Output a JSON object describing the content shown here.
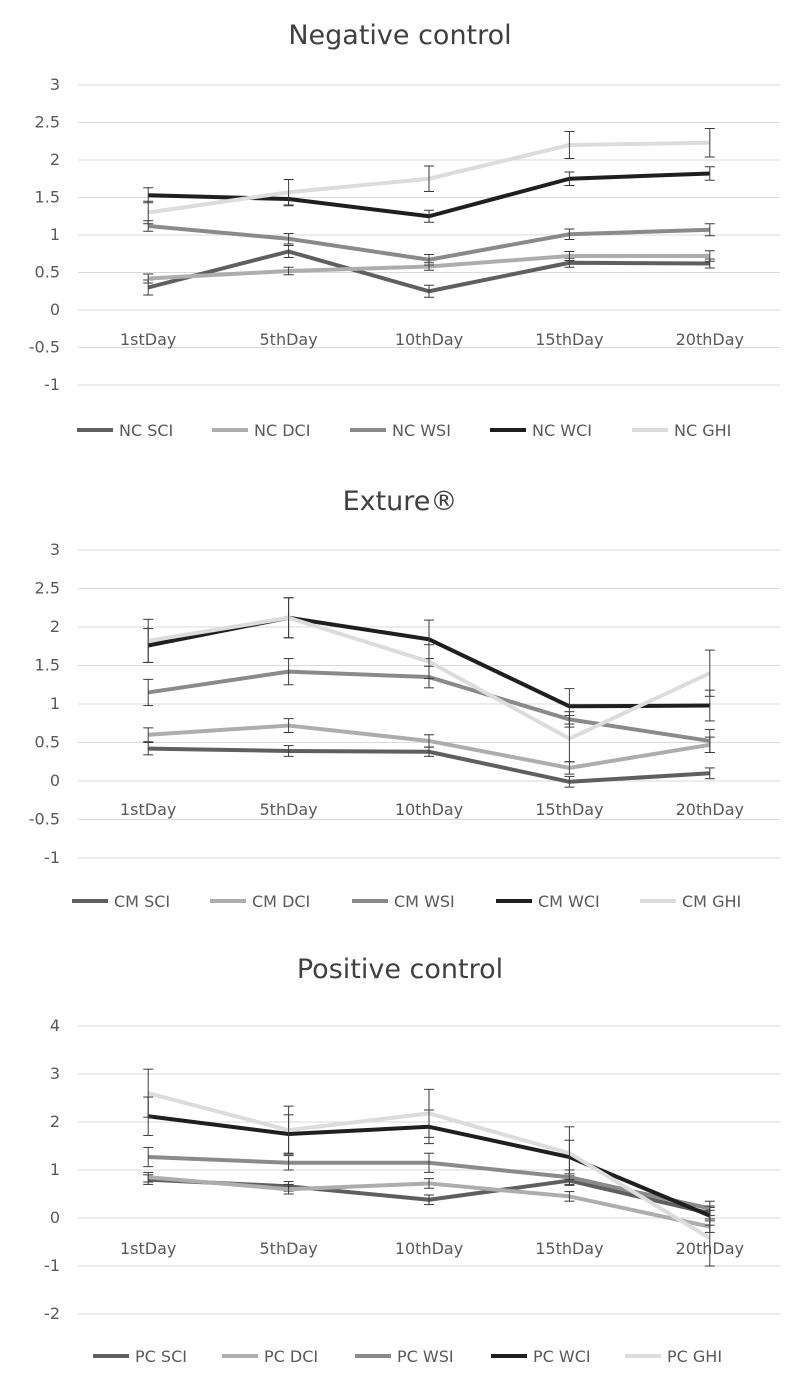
{
  "colors": {
    "SCI": "#5f5f5f",
    "DCI": "#adadad",
    "WSI": "#8a8a8a",
    "WCI": "#1f1f1f",
    "GHI": "#dcdcdc",
    "grid": "#d9d9d9",
    "errorbar": "#3a3a3a"
  },
  "chart_data": [
    {
      "type": "line",
      "title": "Negative control",
      "categories": [
        "1stDay",
        "5thDay",
        "10thDay",
        "15thDay",
        "20thDay"
      ],
      "ylim": [
        -1,
        3
      ],
      "yticks": [
        "3",
        "2.5",
        "2",
        "1.5",
        "1",
        "0.5",
        "0",
        "-0.5",
        "-1"
      ],
      "ytick_values": [
        3,
        2.5,
        2,
        1.5,
        1,
        0.5,
        0,
        -0.5,
        -1
      ],
      "grid": true,
      "legend_position": "bottom",
      "series": [
        {
          "name": "NC SCI",
          "key": "SCI",
          "values": [
            0.3,
            0.78,
            0.25,
            0.63,
            0.62
          ],
          "err": [
            0.1,
            0.08,
            0.08,
            0.06,
            0.06
          ]
        },
        {
          "name": "NC DCI",
          "key": "DCI",
          "values": [
            0.42,
            0.52,
            0.58,
            0.72,
            0.72
          ],
          "err": [
            0.06,
            0.05,
            0.05,
            0.06,
            0.07
          ]
        },
        {
          "name": "NC WSI",
          "key": "WSI",
          "values": [
            1.12,
            0.95,
            0.67,
            1.01,
            1.07
          ],
          "err": [
            0.07,
            0.07,
            0.07,
            0.07,
            0.08
          ]
        },
        {
          "name": "NC WCI",
          "key": "WCI",
          "values": [
            1.53,
            1.48,
            1.25,
            1.75,
            1.82
          ],
          "err": [
            0.1,
            0.09,
            0.08,
            0.09,
            0.09
          ]
        },
        {
          "name": "NC GHI",
          "key": "GHI",
          "values": [
            1.3,
            1.57,
            1.75,
            2.2,
            2.23
          ],
          "err": [
            0.15,
            0.17,
            0.17,
            0.18,
            0.19
          ]
        }
      ]
    },
    {
      "type": "line",
      "title": "Exture®",
      "categories": [
        "1stDay",
        "5thDay",
        "10thDay",
        "15thDay",
        "20thDay"
      ],
      "ylim": [
        -1,
        3
      ],
      "yticks": [
        "3",
        "2.5",
        "2",
        "1.5",
        "1",
        "0.5",
        "0",
        "-0.5",
        "-1"
      ],
      "ytick_values": [
        3,
        2.5,
        2,
        1.5,
        1,
        0.5,
        0,
        -0.5,
        -1
      ],
      "grid": true,
      "legend_position": "bottom",
      "series": [
        {
          "name": "CM SCI",
          "key": "SCI",
          "values": [
            0.42,
            0.39,
            0.38,
            -0.01,
            0.1
          ],
          "err": [
            0.08,
            0.07,
            0.06,
            0.07,
            0.07
          ]
        },
        {
          "name": "CM DCI",
          "key": "DCI",
          "values": [
            0.6,
            0.72,
            0.52,
            0.17,
            0.47
          ],
          "err": [
            0.09,
            0.09,
            0.08,
            0.08,
            0.1
          ]
        },
        {
          "name": "CM WSI",
          "key": "WSI",
          "values": [
            1.15,
            1.42,
            1.35,
            0.8,
            0.52
          ],
          "err": [
            0.17,
            0.17,
            0.14,
            0.1,
            0.15
          ]
        },
        {
          "name": "CM WCI",
          "key": "WCI",
          "values": [
            1.76,
            2.12,
            1.84,
            0.97,
            0.98
          ],
          "err": [
            0.22,
            0.26,
            0.25,
            0.23,
            0.2
          ]
        },
        {
          "name": "CM GHI",
          "key": "GHI",
          "values": [
            1.82,
            2.12,
            1.55,
            0.55,
            1.4
          ],
          "err": [
            0.28,
            0.26,
            0.22,
            0.3,
            0.3
          ]
        }
      ]
    },
    {
      "type": "line",
      "title": "Positive control",
      "categories": [
        "1stDay",
        "5thDay",
        "10thDay",
        "15thDay",
        "20thDay"
      ],
      "ylim": [
        -2,
        4
      ],
      "yticks": [
        "4",
        "3",
        "2",
        "1",
        "0",
        "-1",
        "-2"
      ],
      "ytick_values": [
        4,
        3,
        2,
        1,
        0,
        -1,
        -2
      ],
      "grid": true,
      "legend_position": "bottom",
      "series": [
        {
          "name": "PC SCI",
          "key": "SCI",
          "values": [
            0.8,
            0.66,
            0.38,
            0.78,
            0.1
          ],
          "err": [
            0.1,
            0.1,
            0.1,
            0.1,
            0.12
          ]
        },
        {
          "name": "PC DCI",
          "key": "DCI",
          "values": [
            0.85,
            0.6,
            0.72,
            0.45,
            -0.18
          ],
          "err": [
            0.1,
            0.1,
            0.1,
            0.1,
            0.12
          ]
        },
        {
          "name": "PC WSI",
          "key": "WSI",
          "values": [
            1.27,
            1.15,
            1.15,
            0.85,
            0.2
          ],
          "err": [
            0.2,
            0.15,
            0.2,
            0.15,
            0.15
          ]
        },
        {
          "name": "PC WCI",
          "key": "WCI",
          "values": [
            2.12,
            1.75,
            1.9,
            1.27,
            0.05
          ],
          "err": [
            0.4,
            0.4,
            0.35,
            0.35,
            0.2
          ]
        },
        {
          "name": "PC GHI",
          "key": "GHI",
          "values": [
            2.6,
            1.83,
            2.18,
            1.35,
            -0.42
          ],
          "err": [
            0.5,
            0.5,
            0.5,
            0.55,
            0.58
          ]
        }
      ]
    }
  ]
}
